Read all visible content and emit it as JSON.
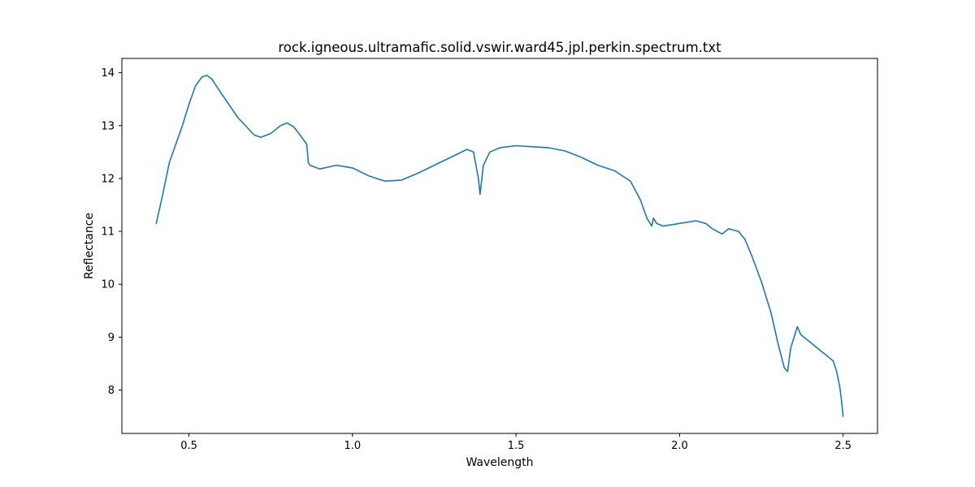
{
  "chart_data": {
    "type": "line",
    "title": "rock.igneous.ultramafic.solid.vswir.ward45.jpl.perkin.spectrum.txt",
    "xlabel": "Wavelength",
    "ylabel": "Reflectance",
    "xlim": [
      0.295,
      2.605
    ],
    "ylim": [
      7.18,
      14.27
    ],
    "x_ticks": [
      0.5,
      1.0,
      1.5,
      2.0,
      2.5
    ],
    "x_tick_labels": [
      "0.5",
      "1.0",
      "1.5",
      "2.0",
      "2.5"
    ],
    "y_ticks": [
      8,
      9,
      10,
      11,
      12,
      13,
      14
    ],
    "y_tick_labels": [
      "8",
      "9",
      "10",
      "11",
      "12",
      "13",
      "14"
    ],
    "grid": false,
    "legend": "none",
    "line_color": "#1f77b4",
    "series": [
      {
        "x": [
          0.4,
          0.42,
          0.44,
          0.46,
          0.48,
          0.5,
          0.52,
          0.54,
          0.555,
          0.57,
          0.6,
          0.65,
          0.7,
          0.72,
          0.75,
          0.78,
          0.8,
          0.82,
          0.84,
          0.86,
          0.865,
          0.87,
          0.9,
          0.95,
          1.0,
          1.05,
          1.1,
          1.15,
          1.2,
          1.25,
          1.3,
          1.35,
          1.37,
          1.385,
          1.39,
          1.4,
          1.42,
          1.45,
          1.5,
          1.55,
          1.6,
          1.65,
          1.7,
          1.75,
          1.8,
          1.85,
          1.88,
          1.9,
          1.915,
          1.92,
          1.93,
          1.95,
          2.0,
          2.05,
          2.08,
          2.1,
          2.13,
          2.15,
          2.18,
          2.2,
          2.22,
          2.25,
          2.28,
          2.3,
          2.32,
          2.33,
          2.34,
          2.36,
          2.37,
          2.4,
          2.43,
          2.45,
          2.47,
          2.48,
          2.49,
          2.495,
          2.5
        ],
        "y": [
          11.15,
          11.7,
          12.3,
          12.65,
          13.0,
          13.4,
          13.75,
          13.92,
          13.95,
          13.88,
          13.6,
          13.15,
          12.82,
          12.78,
          12.85,
          13.0,
          13.05,
          12.98,
          12.82,
          12.65,
          12.3,
          12.25,
          12.18,
          12.25,
          12.2,
          12.05,
          11.95,
          11.97,
          12.1,
          12.25,
          12.4,
          12.55,
          12.5,
          12.0,
          11.7,
          12.25,
          12.5,
          12.58,
          12.62,
          12.6,
          12.58,
          12.52,
          12.4,
          12.25,
          12.15,
          11.95,
          11.6,
          11.25,
          11.1,
          11.25,
          11.15,
          11.1,
          11.15,
          11.2,
          11.15,
          11.05,
          10.95,
          11.05,
          11.0,
          10.85,
          10.55,
          10.05,
          9.45,
          8.9,
          8.42,
          8.35,
          8.8,
          9.2,
          9.05,
          8.9,
          8.75,
          8.65,
          8.55,
          8.35,
          8.05,
          7.8,
          7.5
        ]
      }
    ]
  }
}
